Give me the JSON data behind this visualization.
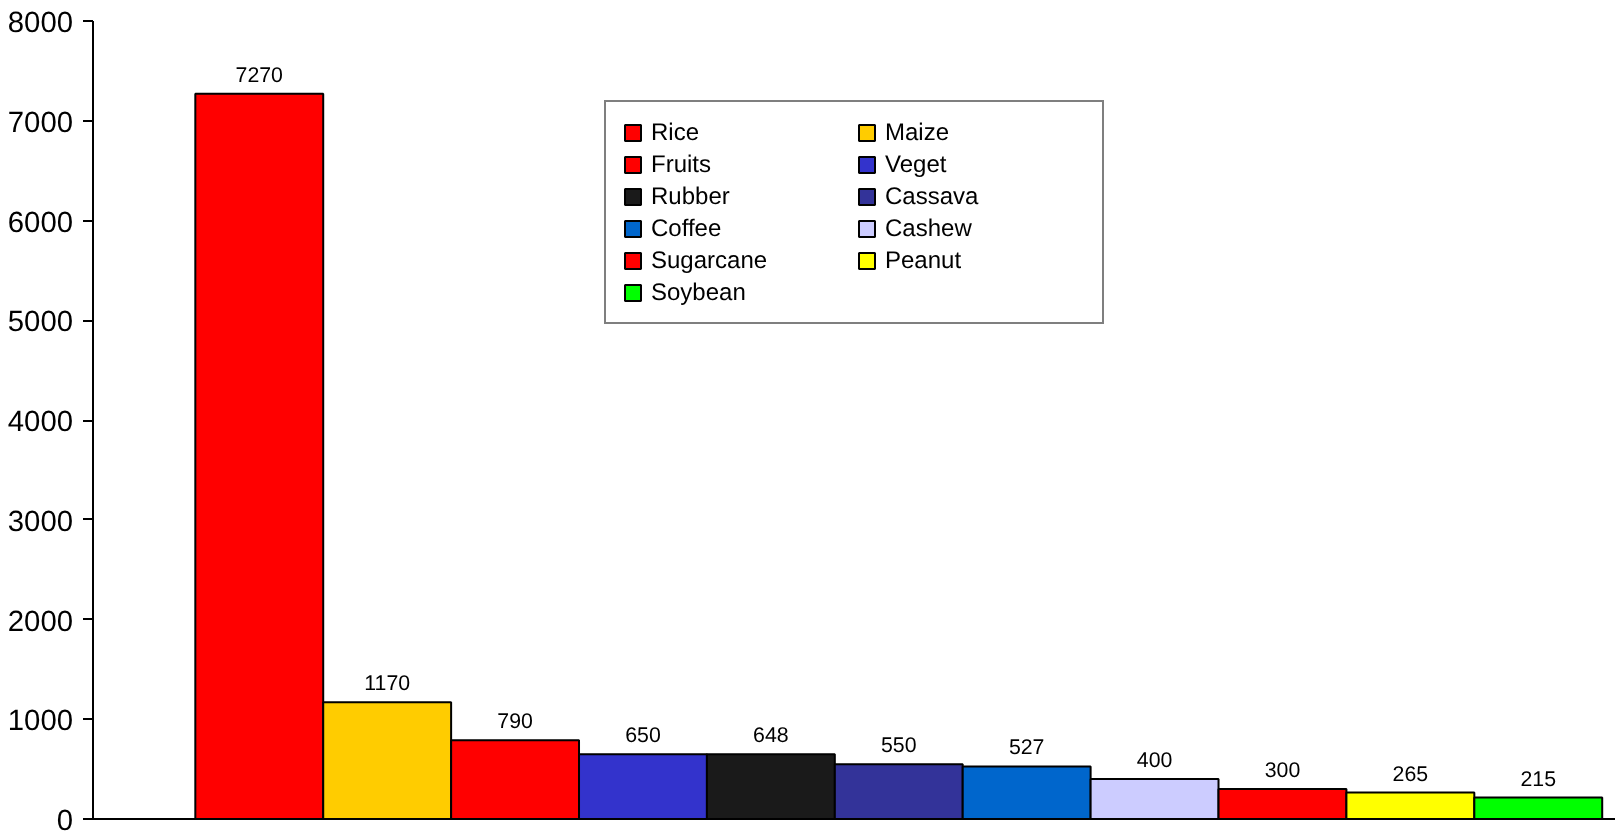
{
  "chart_data": {
    "type": "bar",
    "stacked": true,
    "categories": [
      null,
      null,
      null,
      null,
      null,
      null,
      null,
      null,
      null,
      null,
      null
    ],
    "series": [
      {
        "name": "Rice",
        "color": "#ff0000",
        "values": [
          7270,
          null,
          null,
          null,
          null,
          null,
          null,
          null,
          null,
          null,
          null
        ]
      },
      {
        "name": "Maize",
        "color": "#ffcc00",
        "values": [
          null,
          1170,
          null,
          null,
          null,
          null,
          null,
          null,
          null,
          null,
          null
        ]
      },
      {
        "name": "Fruits",
        "color": "#ff0000",
        "values": [
          null,
          null,
          790,
          null,
          null,
          null,
          null,
          null,
          null,
          null,
          null
        ]
      },
      {
        "name": "Veget",
        "color": "#3333cc",
        "values": [
          null,
          null,
          null,
          650,
          null,
          null,
          null,
          null,
          null,
          null,
          null
        ]
      },
      {
        "name": "Rubber",
        "color": "#1a1a1a",
        "values": [
          null,
          null,
          null,
          null,
          648,
          null,
          null,
          null,
          null,
          null,
          null
        ]
      },
      {
        "name": "Cassava",
        "color": "#333399",
        "values": [
          null,
          null,
          null,
          null,
          null,
          550,
          null,
          null,
          null,
          null,
          null
        ]
      },
      {
        "name": "Coffee",
        "color": "#0066cc",
        "values": [
          null,
          null,
          null,
          null,
          null,
          null,
          527,
          null,
          null,
          null,
          null
        ]
      },
      {
        "name": "Cashew",
        "color": "#ccccff",
        "values": [
          null,
          null,
          null,
          null,
          null,
          null,
          null,
          400,
          null,
          null,
          null
        ]
      },
      {
        "name": "Sugarcane",
        "color": "#ff0000",
        "values": [
          null,
          null,
          null,
          null,
          null,
          null,
          null,
          null,
          300,
          null,
          null
        ]
      },
      {
        "name": "Peanut",
        "color": "#ffff00",
        "values": [
          null,
          null,
          null,
          null,
          null,
          null,
          null,
          null,
          null,
          265,
          null
        ]
      },
      {
        "name": "Soybean",
        "color": "#00ff00",
        "values": [
          null,
          null,
          null,
          null,
          null,
          null,
          null,
          null,
          null,
          null,
          215
        ]
      }
    ],
    "ylim": [
      0,
      8000
    ],
    "yticks": [
      0,
      1000,
      2000,
      3000,
      4000,
      5000,
      6000,
      7000,
      8000
    ],
    "data_labels": true,
    "grid": false,
    "legend": "top",
    "tick_labels": "y"
  }
}
